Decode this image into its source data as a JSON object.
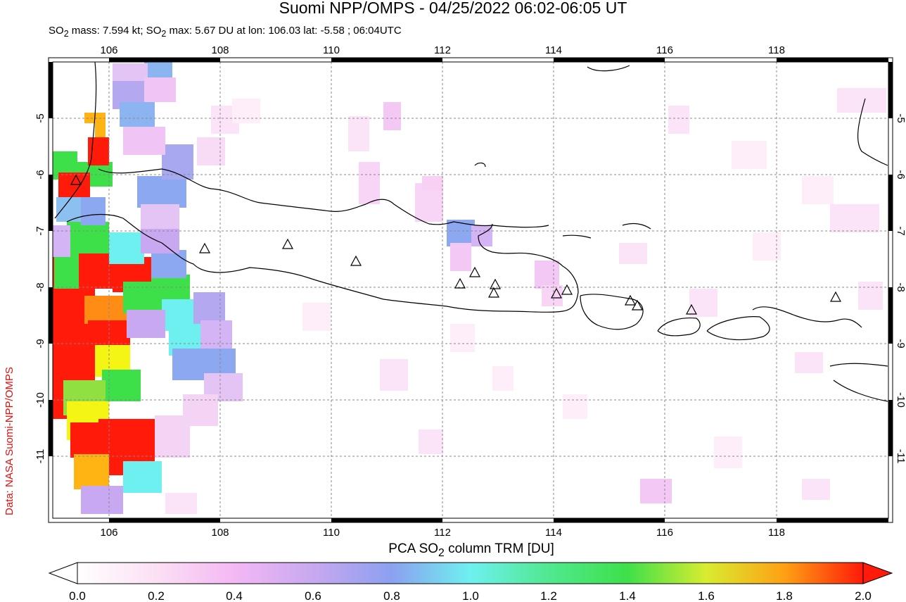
{
  "header": {
    "title": "Suomi NPP/OMPS - 04/25/2022 06:02-06:05 UT",
    "subtitle_prefix": "SO",
    "subtitle_a": " mass: 7.594 kt; SO",
    "subtitle_b": " max: 5.67 DU at lon: 106.03 lat: -5.58 ; 06:04UTC",
    "subscript": "2"
  },
  "credit": "Data: NASA Suomi-NPP/OMPS",
  "map": {
    "lon_ticks": [
      "106",
      "108",
      "110",
      "112",
      "114",
      "116",
      "118"
    ],
    "lat_ticks": [
      "-5",
      "-6",
      "-7",
      "-8",
      "-9",
      "-10",
      "-11"
    ],
    "lon_range": [
      104.9,
      119.9
    ],
    "lat_range": [
      -12.1,
      -4.0
    ]
  },
  "colorbar": {
    "title_a": "PCA SO",
    "title_b": " column TRM [DU]",
    "subscript": "2",
    "ticks": [
      "0.0",
      "0.2",
      "0.4",
      "0.6",
      "0.8",
      "1.0",
      "1.2",
      "1.4",
      "1.6",
      "1.8",
      "2.0"
    ],
    "range": [
      0.0,
      2.0
    ]
  },
  "colors": {
    "red": "#ff1a0a",
    "orange": "#ff8c14",
    "yellow": "#f5f514",
    "green": "#3ee04a",
    "cyan": "#6ef0f0",
    "blue": "#8ca8f0",
    "lavender": "#c8a8f0",
    "pink": "#f4c8f4"
  },
  "volcano_marker": "triangle-icon"
}
